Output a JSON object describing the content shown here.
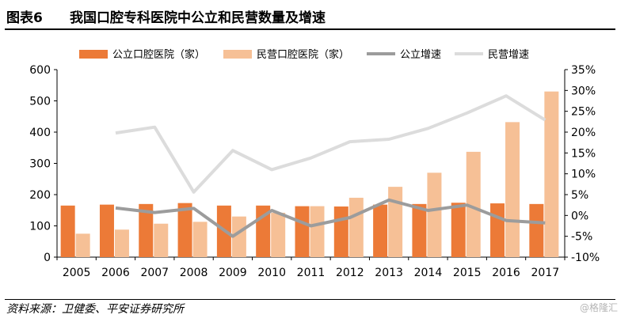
{
  "header": {
    "label": "图表6",
    "title": "我国口腔专科医院中公立和民营数量及增速"
  },
  "footer": {
    "source": "资料来源：卫健委、平安证券研究所",
    "watermark": "@格隆汇"
  },
  "chart_data": {
    "type": "bar",
    "title": "我国口腔专科医院中公立和民营数量及增速",
    "categories": [
      "2005",
      "2006",
      "2007",
      "2008",
      "2009",
      "2010",
      "2011",
      "2012",
      "2013",
      "2014",
      "2015",
      "2016",
      "2017"
    ],
    "series": [
      {
        "name": "公立口腔医院（家）",
        "type": "bar",
        "axis": "left",
        "color": "#ec7a37",
        "values": [
          165,
          168,
          170,
          173,
          165,
          165,
          163,
          162,
          168,
          170,
          174,
          172,
          170
        ]
      },
      {
        "name": "民营口腔医院（家）",
        "type": "bar",
        "axis": "left",
        "color": "#f6c096",
        "values": [
          75,
          88,
          107,
          113,
          130,
          142,
          163,
          190,
          225,
          270,
          337,
          432,
          530
        ]
      },
      {
        "name": "公立增速",
        "type": "line",
        "axis": "right",
        "color": "#9c9c9c",
        "values": [
          null,
          1.8,
          0.7,
          1.7,
          -5.0,
          1.2,
          -2.5,
          -0.5,
          3.7,
          1.2,
          2.5,
          -1.2,
          -1.8
        ]
      },
      {
        "name": "民营增速",
        "type": "line",
        "axis": "right",
        "color": "#dcdcdc",
        "values": [
          null,
          19.8,
          21.2,
          5.6,
          15.6,
          11.0,
          13.8,
          17.7,
          18.3,
          20.9,
          24.6,
          28.7,
          22.9
        ]
      }
    ],
    "y_left": {
      "min": 0,
      "max": 600,
      "ticks": [
        "0",
        "100",
        "200",
        "300",
        "400",
        "500",
        "600"
      ]
    },
    "y_right": {
      "min": -10,
      "max": 35,
      "ticks": [
        "-10%",
        "-5%",
        "0%",
        "5%",
        "10%",
        "15%",
        "20%",
        "25%",
        "30%",
        "35%"
      ]
    },
    "legend": [
      "公立口腔医院（家）",
      "民营口腔医院（家）",
      "公立增速",
      "民营增速"
    ],
    "legend_position": "top",
    "grid": false
  }
}
